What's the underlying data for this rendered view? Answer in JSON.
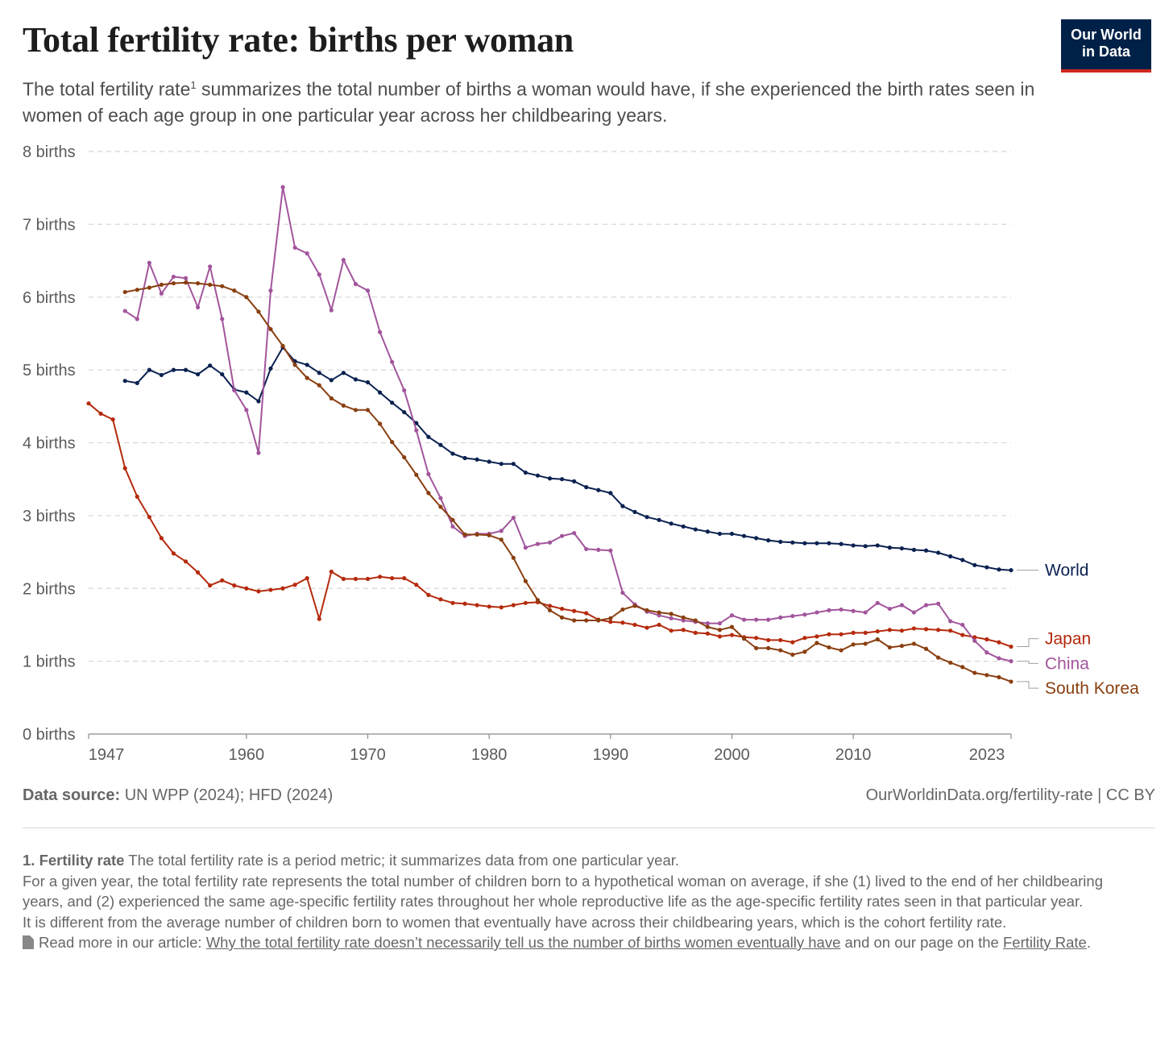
{
  "header": {
    "title": "Total fertility rate: births per woman",
    "subtitle_before": "The total fertility rate",
    "subtitle_sup": "1",
    "subtitle_after": " summarizes the total number of births a woman would have, if she experienced the birth rates seen in women of each age group in one particular year across her childbearing years.",
    "logo_line1": "Our World",
    "logo_line2": "in Data"
  },
  "footer": {
    "source_label": "Data source:",
    "source_text": " UN WPP (2024); HFD (2024)",
    "credit": "OurWorldinData.org/fertility-rate | CC BY"
  },
  "notes": {
    "note_title": "1. Fertility rate",
    "note_line1": " The total fertility rate is a period metric; it summarizes data from one particular year.",
    "note_line2": "For a given year, the total fertility rate represents the total number of children born to a hypothetical woman on average, if she (1) lived to the end of her childbearing years, and (2) experienced the same age-specific fertility rates throughout her whole reproductive life as the age-specific fertility rates seen in that particular year.",
    "note_line3": "It is different from the average number of children born to women that eventually have across their childbearing years, which is the cohort fertility rate.",
    "read_more_prefix": "Read more in our article: ",
    "read_more_link": "Why the total fertility rate doesn’t necessarily tell us the number of births women eventually have",
    "read_more_middle": " and on our page on the ",
    "read_more_link2": "Fertility Rate",
    "read_more_suffix": "."
  },
  "chart_data": {
    "type": "line",
    "xlim": [
      1947,
      2023
    ],
    "ylim": [
      0,
      8
    ],
    "x_ticks": [
      1947,
      1960,
      1970,
      1980,
      1990,
      2000,
      2010,
      2023
    ],
    "y_ticks": [
      0,
      1,
      2,
      3,
      4,
      5,
      6,
      7,
      8
    ],
    "y_tick_suffix": " births",
    "grid": "horizontal dashed",
    "series": [
      {
        "name": "World",
        "color": "#0a2150",
        "x": [
          1950,
          1951,
          1952,
          1953,
          1954,
          1955,
          1956,
          1957,
          1958,
          1959,
          1960,
          1961,
          1962,
          1963,
          1964,
          1965,
          1966,
          1967,
          1968,
          1969,
          1970,
          1971,
          1972,
          1973,
          1974,
          1975,
          1976,
          1977,
          1978,
          1979,
          1980,
          1981,
          1982,
          1983,
          1984,
          1985,
          1986,
          1987,
          1988,
          1989,
          1990,
          1991,
          1992,
          1993,
          1994,
          1995,
          1996,
          1997,
          1998,
          1999,
          2000,
          2001,
          2002,
          2003,
          2004,
          2005,
          2006,
          2007,
          2008,
          2009,
          2010,
          2011,
          2012,
          2013,
          2014,
          2015,
          2016,
          2017,
          2018,
          2019,
          2020,
          2021,
          2022,
          2023
        ],
        "y": [
          4.85,
          4.82,
          5.0,
          4.93,
          5.0,
          5.0,
          4.94,
          5.06,
          4.94,
          4.73,
          4.69,
          4.57,
          5.02,
          5.31,
          5.12,
          5.07,
          4.96,
          4.86,
          4.96,
          4.87,
          4.83,
          4.69,
          4.55,
          4.42,
          4.27,
          4.08,
          3.97,
          3.85,
          3.79,
          3.77,
          3.74,
          3.71,
          3.71,
          3.59,
          3.55,
          3.51,
          3.5,
          3.47,
          3.39,
          3.35,
          3.31,
          3.13,
          3.05,
          2.98,
          2.94,
          2.89,
          2.85,
          2.81,
          2.78,
          2.75,
          2.75,
          2.72,
          2.69,
          2.66,
          2.64,
          2.63,
          2.62,
          2.62,
          2.62,
          2.61,
          2.59,
          2.58,
          2.59,
          2.56,
          2.55,
          2.53,
          2.52,
          2.49,
          2.44,
          2.39,
          2.32,
          2.29,
          2.26,
          2.25
        ]
      },
      {
        "name": "Japan",
        "color": "#b52a0d",
        "x": [
          1947,
          1948,
          1949,
          1950,
          1951,
          1952,
          1953,
          1954,
          1955,
          1956,
          1957,
          1958,
          1959,
          1960,
          1961,
          1962,
          1963,
          1964,
          1965,
          1966,
          1967,
          1968,
          1969,
          1970,
          1971,
          1972,
          1973,
          1974,
          1975,
          1976,
          1977,
          1978,
          1979,
          1980,
          1981,
          1982,
          1983,
          1984,
          1985,
          1986,
          1987,
          1988,
          1989,
          1990,
          1991,
          1992,
          1993,
          1994,
          1995,
          1996,
          1997,
          1998,
          1999,
          2000,
          2001,
          2002,
          2003,
          2004,
          2005,
          2006,
          2007,
          2008,
          2009,
          2010,
          2011,
          2012,
          2013,
          2014,
          2015,
          2016,
          2017,
          2018,
          2019,
          2020,
          2021,
          2022,
          2023
        ],
        "y": [
          4.54,
          4.4,
          4.32,
          3.65,
          3.26,
          2.98,
          2.69,
          2.48,
          2.37,
          2.22,
          2.04,
          2.11,
          2.04,
          2.0,
          1.96,
          1.98,
          2.0,
          2.05,
          2.14,
          1.58,
          2.23,
          2.13,
          2.13,
          2.13,
          2.16,
          2.14,
          2.14,
          2.05,
          1.91,
          1.85,
          1.8,
          1.79,
          1.77,
          1.75,
          1.74,
          1.77,
          1.8,
          1.81,
          1.76,
          1.72,
          1.69,
          1.66,
          1.57,
          1.54,
          1.53,
          1.5,
          1.46,
          1.5,
          1.42,
          1.43,
          1.39,
          1.38,
          1.34,
          1.36,
          1.33,
          1.32,
          1.29,
          1.29,
          1.26,
          1.32,
          1.34,
          1.37,
          1.37,
          1.39,
          1.39,
          1.41,
          1.43,
          1.42,
          1.45,
          1.44,
          1.43,
          1.42,
          1.36,
          1.33,
          1.3,
          1.26,
          1.2
        ]
      },
      {
        "name": "China",
        "color": "#a2559c",
        "x": [
          1950,
          1951,
          1952,
          1953,
          1954,
          1955,
          1956,
          1957,
          1958,
          1959,
          1960,
          1961,
          1962,
          1963,
          1964,
          1965,
          1966,
          1967,
          1968,
          1969,
          1970,
          1971,
          1972,
          1973,
          1974,
          1975,
          1976,
          1977,
          1978,
          1979,
          1980,
          1981,
          1982,
          1983,
          1984,
          1985,
          1986,
          1987,
          1988,
          1989,
          1990,
          1991,
          1992,
          1993,
          1994,
          1995,
          1996,
          1997,
          1998,
          1999,
          2000,
          2001,
          2002,
          2003,
          2004,
          2005,
          2006,
          2007,
          2008,
          2009,
          2010,
          2011,
          2012,
          2013,
          2014,
          2015,
          2016,
          2017,
          2018,
          2019,
          2020,
          2021,
          2022,
          2023
        ],
        "y": [
          5.81,
          5.7,
          6.47,
          6.05,
          6.28,
          6.26,
          5.86,
          6.42,
          5.7,
          4.72,
          4.45,
          3.86,
          6.09,
          7.51,
          6.68,
          6.6,
          6.31,
          5.82,
          6.51,
          6.18,
          6.09,
          5.52,
          5.11,
          4.72,
          4.17,
          3.57,
          3.24,
          2.85,
          2.72,
          2.75,
          2.75,
          2.79,
          2.97,
          2.56,
          2.61,
          2.63,
          2.72,
          2.76,
          2.54,
          2.53,
          2.52,
          1.94,
          1.78,
          1.68,
          1.63,
          1.59,
          1.56,
          1.54,
          1.52,
          1.52,
          1.63,
          1.57,
          1.57,
          1.57,
          1.6,
          1.62,
          1.64,
          1.67,
          1.7,
          1.71,
          1.69,
          1.67,
          1.8,
          1.72,
          1.77,
          1.67,
          1.77,
          1.79,
          1.55,
          1.5,
          1.28,
          1.12,
          1.04,
          1.0
        ]
      },
      {
        "name": "South Korea",
        "color": "#8a3f10",
        "x": [
          1950,
          1951,
          1952,
          1953,
          1954,
          1955,
          1956,
          1957,
          1958,
          1959,
          1960,
          1961,
          1962,
          1963,
          1964,
          1965,
          1966,
          1967,
          1968,
          1969,
          1970,
          1971,
          1972,
          1973,
          1974,
          1975,
          1976,
          1977,
          1978,
          1979,
          1980,
          1981,
          1982,
          1983,
          1984,
          1985,
          1986,
          1987,
          1988,
          1989,
          1990,
          1991,
          1992,
          1993,
          1994,
          1995,
          1996,
          1997,
          1998,
          1999,
          2000,
          2001,
          2002,
          2003,
          2004,
          2005,
          2006,
          2007,
          2008,
          2009,
          2010,
          2011,
          2012,
          2013,
          2014,
          2015,
          2016,
          2017,
          2018,
          2019,
          2020,
          2021,
          2022,
          2023
        ],
        "y": [
          6.07,
          6.1,
          6.13,
          6.17,
          6.19,
          6.2,
          6.19,
          6.17,
          6.15,
          6.09,
          6.0,
          5.8,
          5.56,
          5.33,
          5.07,
          4.89,
          4.79,
          4.61,
          4.51,
          4.45,
          4.45,
          4.26,
          4.01,
          3.8,
          3.56,
          3.31,
          3.12,
          2.94,
          2.74,
          2.74,
          2.73,
          2.67,
          2.42,
          2.1,
          1.84,
          1.7,
          1.6,
          1.56,
          1.56,
          1.56,
          1.59,
          1.71,
          1.76,
          1.7,
          1.67,
          1.65,
          1.6,
          1.56,
          1.47,
          1.43,
          1.47,
          1.31,
          1.18,
          1.18,
          1.15,
          1.09,
          1.13,
          1.25,
          1.19,
          1.15,
          1.23,
          1.24,
          1.3,
          1.19,
          1.21,
          1.24,
          1.17,
          1.05,
          0.98,
          0.92,
          0.84,
          0.81,
          0.78,
          0.72
        ]
      }
    ]
  }
}
